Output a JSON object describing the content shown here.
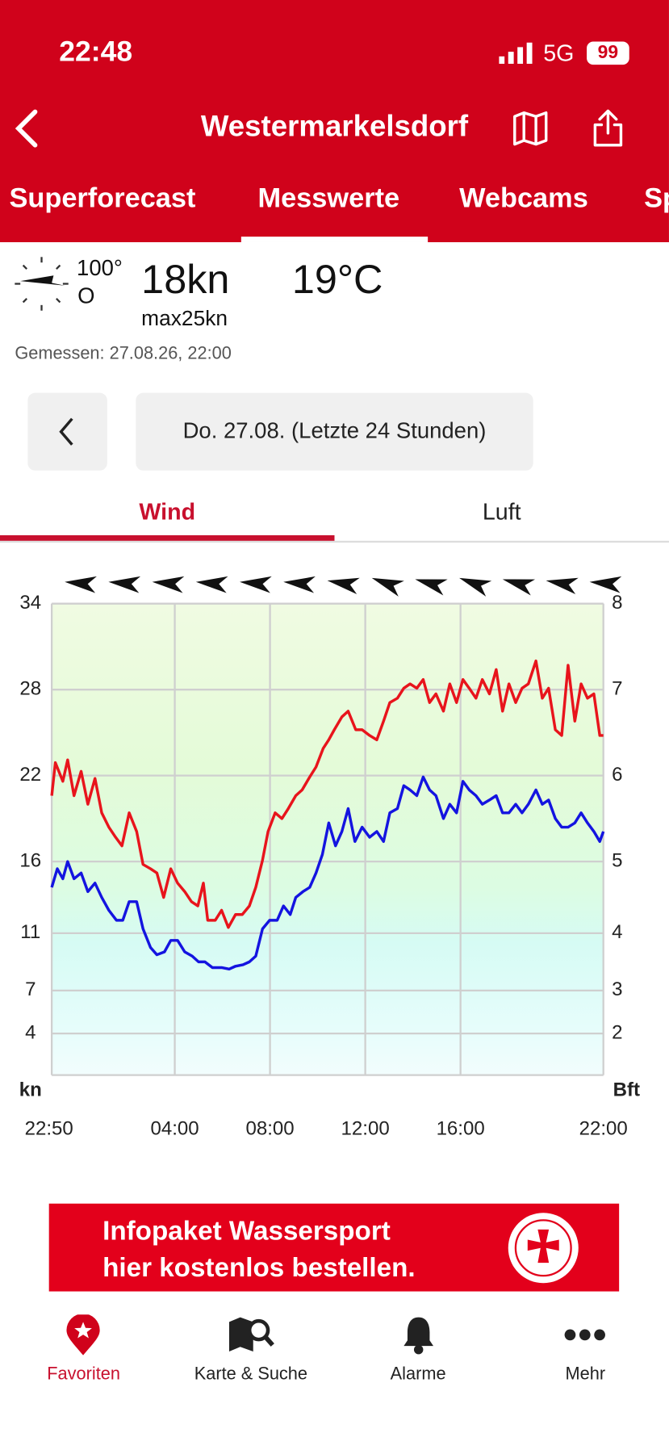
{
  "status": {
    "time": "22:48",
    "network": "5G",
    "battery": "99"
  },
  "header": {
    "title": "Westermarkelsdorf",
    "tabs": [
      "Superforecast",
      "Messwerte",
      "Webcams",
      "Sp"
    ]
  },
  "current": {
    "direction_deg": "100°",
    "direction": "O",
    "speed": "18kn",
    "max": "max25kn",
    "temperature": "19°C",
    "measured": "Gemessen: 27.08.26, 22:00"
  },
  "date_nav": {
    "label": "Do. 27.08. (Letzte 24 Stunden)"
  },
  "subtabs": [
    "Wind",
    "Luft"
  ],
  "chart_data": {
    "type": "line",
    "y_unit": "kn",
    "y2_unit": "Bft",
    "xlim": [
      0,
      1390
    ],
    "xticks": [
      {
        "value": 0,
        "label": "22:50"
      },
      {
        "value": 310,
        "label": "04:00"
      },
      {
        "value": 550,
        "label": "08:00"
      },
      {
        "value": 790,
        "label": "12:00"
      },
      {
        "value": 1030,
        "label": "16:00"
      },
      {
        "value": 1390,
        "label": "22:00"
      }
    ],
    "ylim": [
      0,
      34
    ],
    "yticks": [
      34,
      28,
      22,
      16,
      11,
      7,
      4
    ],
    "y2ticks": [
      8,
      7,
      6,
      5,
      4,
      3,
      2
    ],
    "grid": true,
    "wind_directions": [
      95,
      95,
      95,
      95,
      95,
      95,
      100,
      110,
      105,
      110,
      105,
      100,
      95
    ],
    "series": [
      {
        "color": "#e8141c",
        "x": [
          0,
          9,
          28,
          40,
          56,
          74,
          91,
          109,
          126,
          144,
          161,
          177,
          195,
          214,
          230,
          249,
          265,
          282,
          300,
          317,
          335,
          352,
          368,
          382,
          393,
          412,
          428,
          445,
          463,
          480,
          498,
          514,
          531,
          545,
          563,
          580,
          596,
          615,
          631,
          650,
          666,
          684,
          698,
          712,
          731,
          747,
          766,
          782,
          801,
          819,
          836,
          852,
          871,
          887,
          903,
          920,
          936,
          952,
          968,
          987,
          1003,
          1020,
          1036,
          1052,
          1069,
          1085,
          1103,
          1120,
          1136,
          1152,
          1169,
          1185,
          1201,
          1220,
          1236,
          1252,
          1269,
          1285,
          1301,
          1318,
          1334,
          1350,
          1366,
          1381,
          1390
        ],
        "values": [
          20.6,
          22.9,
          21.6,
          23.1,
          20.6,
          22.3,
          20,
          21.8,
          19.4,
          18.4,
          17.7,
          17.1,
          19.4,
          18.1,
          15.8,
          15.5,
          15.2,
          13.5,
          15.5,
          14.5,
          13.9,
          13.2,
          12.9,
          14.5,
          11.9,
          11.9,
          12.6,
          11.4,
          12.3,
          12.3,
          12.9,
          14.2,
          16.1,
          18.1,
          19.4,
          19,
          19.7,
          20.6,
          21,
          21.9,
          22.6,
          23.9,
          24.5,
          25.2,
          26.1,
          26.5,
          25.2,
          25.2,
          24.8,
          24.5,
          25.8,
          27.1,
          27.4,
          28.1,
          28.4,
          28.1,
          28.7,
          27.1,
          27.7,
          26.5,
          28.4,
          27.1,
          28.7,
          28.1,
          27.4,
          28.7,
          27.7,
          29.4,
          26.5,
          28.4,
          27.1,
          28.1,
          28.4,
          30,
          27.4,
          28.1,
          25.2,
          24.8,
          29.7,
          25.8,
          28.4,
          27.4,
          27.7,
          24.8,
          24.8
        ]
      },
      {
        "color": "#1414e0",
        "x": [
          0,
          14,
          28,
          40,
          56,
          74,
          91,
          109,
          126,
          144,
          163,
          179,
          195,
          214,
          230,
          249,
          265,
          284,
          300,
          317,
          335,
          354,
          370,
          386,
          405,
          428,
          447,
          463,
          482,
          498,
          514,
          531,
          549,
          568,
          584,
          601,
          615,
          633,
          650,
          666,
          682,
          698,
          715,
          731,
          747,
          764,
          782,
          801,
          819,
          836,
          852,
          871,
          887,
          903,
          920,
          936,
          952,
          968,
          987,
          1003,
          1020,
          1036,
          1052,
          1069,
          1085,
          1103,
          1120,
          1136,
          1152,
          1169,
          1185,
          1201,
          1220,
          1236,
          1252,
          1269,
          1285,
          1301,
          1318,
          1334,
          1350,
          1366,
          1381,
          1390
        ],
        "values": [
          14.2,
          15.5,
          14.8,
          16,
          14.8,
          15.2,
          13.9,
          14.5,
          13.5,
          12.6,
          11.9,
          11.9,
          13.2,
          13.2,
          11.3,
          10,
          9.5,
          9.7,
          10.5,
          10.5,
          9.7,
          9.4,
          9,
          9,
          8.6,
          8.6,
          8.5,
          8.7,
          8.8,
          9,
          9.4,
          11.3,
          11.9,
          11.9,
          12.9,
          12.3,
          13.5,
          13.9,
          14.2,
          15.2,
          16.5,
          18.7,
          17.1,
          18.1,
          19.7,
          17.4,
          18.4,
          17.7,
          18.1,
          17.4,
          19.4,
          19.7,
          21.3,
          21,
          20.6,
          21.9,
          21,
          20.6,
          19,
          20,
          19.4,
          21.6,
          21,
          20.6,
          20,
          20.3,
          20.6,
          19.4,
          19.4,
          20,
          19.4,
          20,
          21,
          20,
          20.3,
          19,
          18.4,
          18.4,
          18.7,
          19.4,
          18.7,
          18.1,
          17.4,
          18.1
        ]
      }
    ]
  },
  "banner": {
    "line1": "Infopaket Wassersport",
    "line2": "hier kostenlos bestellen."
  },
  "nav": [
    "Favoriten",
    "Karte & Suche",
    "Alarme",
    "Mehr"
  ]
}
